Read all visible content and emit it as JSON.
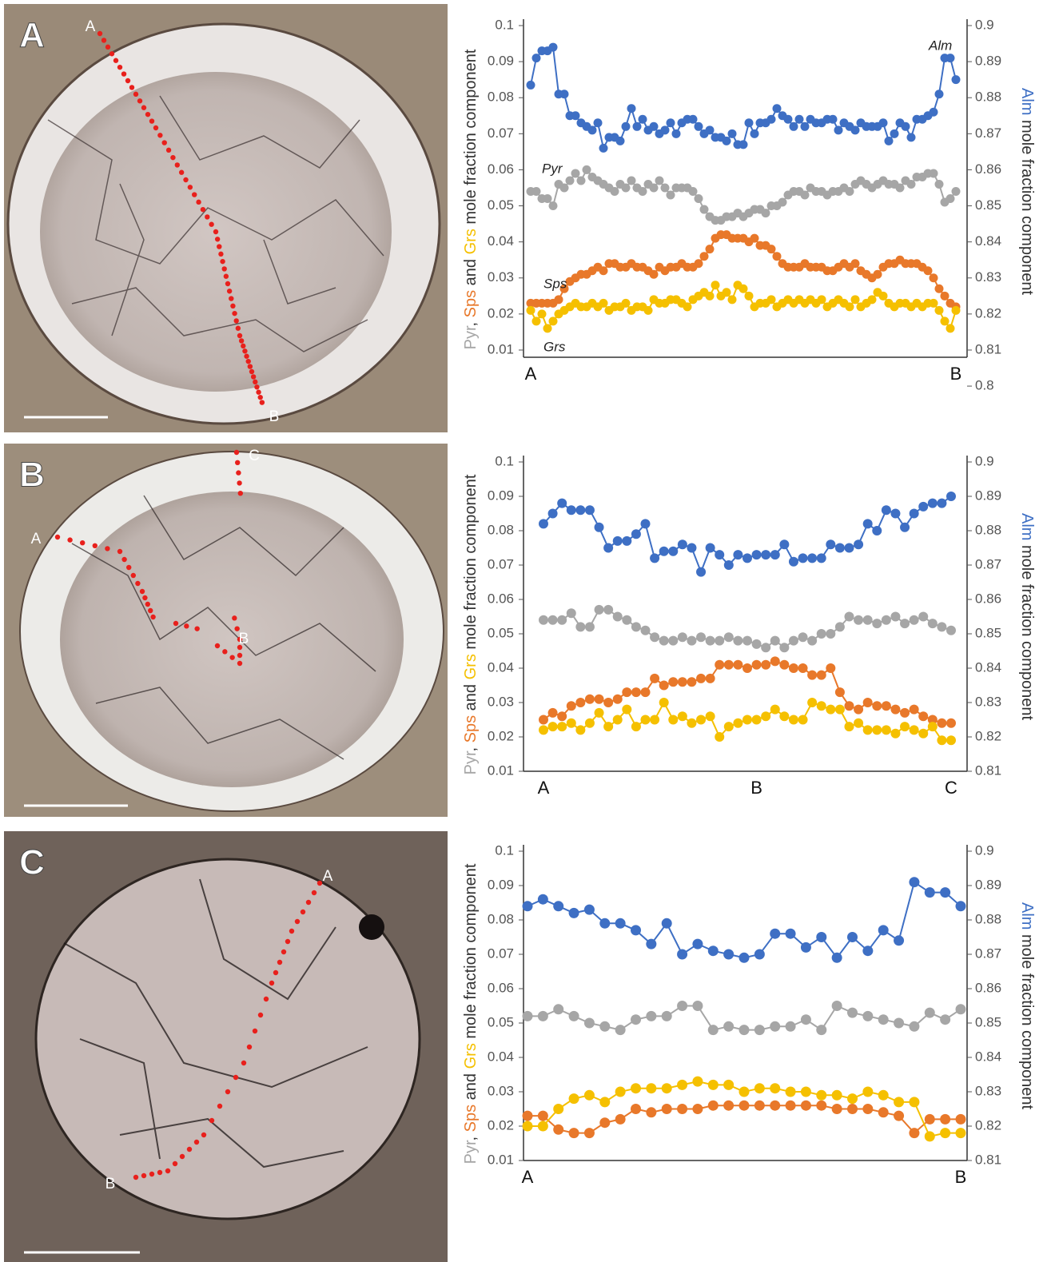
{
  "images": [
    {
      "panel": "A",
      "points": [
        "A",
        "B"
      ]
    },
    {
      "panel": "B",
      "points": [
        "A",
        "B",
        "C"
      ]
    },
    {
      "panel": "C",
      "points": [
        "A",
        "B"
      ]
    }
  ],
  "chart_data": [
    {
      "type": "line",
      "categories": [
        "A",
        null,
        null,
        null,
        null,
        null,
        null,
        null,
        null,
        null,
        null,
        null,
        null,
        null,
        null,
        null,
        null,
        null,
        null,
        null,
        null,
        null,
        null,
        null,
        null,
        null,
        null,
        null,
        null,
        null,
        null,
        null,
        null,
        null,
        null,
        null,
        null,
        null,
        null,
        null,
        null,
        null,
        null,
        null,
        null,
        null,
        null,
        null,
        null,
        null,
        null,
        null,
        null,
        null,
        null,
        null,
        null,
        null,
        null,
        null,
        null,
        null,
        null,
        null,
        null,
        null,
        null,
        null,
        null,
        null,
        null,
        null,
        null,
        null,
        null,
        null,
        "B"
      ],
      "ylim": [
        0.008,
        0.1
      ],
      "yticks": [
        0.01,
        0.02,
        0.03,
        0.04,
        0.05,
        0.06,
        0.07,
        0.08,
        0.09,
        0.1
      ],
      "y2lim": [
        0.808,
        0.9
      ],
      "y2ticks": [
        0.8,
        0.81,
        0.82,
        0.83,
        0.84,
        0.85,
        0.86,
        0.87,
        0.88,
        0.89,
        0.9
      ],
      "ylabel": [
        {
          "text": "Pyr",
          "color": "#a6a6a6"
        },
        {
          "text": ", "
        },
        {
          "text": "Sps",
          "color": "#e8782a"
        },
        {
          "text": " and "
        },
        {
          "text": "Grs",
          "color": "#f5c000"
        },
        {
          "text": " mole fraction component"
        }
      ],
      "y2label": [
        {
          "text": "Alm",
          "color": "#3e6fc4"
        },
        {
          "text": " mole fraction component"
        }
      ],
      "series": [
        {
          "name": "Alm",
          "color": "#3e6fc4",
          "axis": "y2",
          "values": [
            0.8835,
            0.891,
            0.893,
            0.893,
            0.894,
            0.881,
            0.881,
            0.875,
            0.875,
            0.873,
            0.872,
            0.871,
            0.873,
            0.866,
            0.869,
            0.869,
            0.868,
            0.872,
            0.877,
            0.872,
            0.874,
            0.871,
            0.872,
            0.87,
            0.871,
            0.873,
            0.87,
            0.873,
            0.874,
            0.874,
            0.872,
            0.87,
            0.871,
            0.869,
            0.869,
            0.868,
            0.87,
            0.867,
            0.867,
            0.873,
            0.87,
            0.873,
            0.873,
            0.874,
            0.877,
            0.875,
            0.874,
            0.872,
            0.874,
            0.872,
            0.874,
            0.873,
            0.873,
            0.874,
            0.874,
            0.871,
            0.873,
            0.872,
            0.871,
            0.873,
            0.872,
            0.872,
            0.872,
            0.873,
            0.868,
            0.87,
            0.873,
            0.872,
            0.869,
            0.874,
            0.874,
            0.875,
            0.876,
            0.881,
            0.891,
            0.891,
            0.885
          ]
        },
        {
          "name": "Pyr",
          "color": "#a6a6a6",
          "values": [
            0.054,
            0.054,
            0.052,
            0.052,
            0.05,
            0.056,
            0.055,
            0.057,
            0.059,
            0.057,
            0.06,
            0.058,
            0.057,
            0.056,
            0.055,
            0.054,
            0.056,
            0.055,
            0.057,
            0.055,
            0.054,
            0.056,
            0.055,
            0.057,
            0.055,
            0.053,
            0.055,
            0.055,
            0.055,
            0.054,
            0.052,
            0.049,
            0.047,
            0.046,
            0.046,
            0.047,
            0.047,
            0.048,
            0.047,
            0.048,
            0.049,
            0.049,
            0.048,
            0.05,
            0.05,
            0.051,
            0.053,
            0.054,
            0.054,
            0.053,
            0.055,
            0.054,
            0.054,
            0.053,
            0.054,
            0.054,
            0.055,
            0.054,
            0.056,
            0.057,
            0.056,
            0.055,
            0.056,
            0.057,
            0.056,
            0.056,
            0.055,
            0.057,
            0.056,
            0.058,
            0.058,
            0.059,
            0.059,
            0.056,
            0.051,
            0.052,
            0.054
          ]
        },
        {
          "name": "Sps",
          "color": "#e8782a",
          "values": [
            0.023,
            0.023,
            0.023,
            0.023,
            0.023,
            0.024,
            0.027,
            0.029,
            0.03,
            0.031,
            0.031,
            0.032,
            0.033,
            0.032,
            0.034,
            0.034,
            0.033,
            0.033,
            0.034,
            0.033,
            0.033,
            0.032,
            0.031,
            0.033,
            0.032,
            0.033,
            0.033,
            0.034,
            0.033,
            0.033,
            0.034,
            0.036,
            0.038,
            0.041,
            0.042,
            0.042,
            0.041,
            0.041,
            0.041,
            0.04,
            0.041,
            0.039,
            0.039,
            0.038,
            0.036,
            0.034,
            0.033,
            0.033,
            0.033,
            0.034,
            0.033,
            0.033,
            0.033,
            0.032,
            0.032,
            0.033,
            0.034,
            0.033,
            0.034,
            0.032,
            0.031,
            0.03,
            0.031,
            0.033,
            0.034,
            0.034,
            0.035,
            0.034,
            0.034,
            0.034,
            0.033,
            0.032,
            0.03,
            0.027,
            0.025,
            0.023,
            0.022
          ]
        },
        {
          "name": "Grs",
          "color": "#f5c000",
          "values": [
            0.021,
            0.018,
            0.02,
            0.016,
            0.018,
            0.02,
            0.021,
            0.022,
            0.023,
            0.022,
            0.022,
            0.023,
            0.022,
            0.023,
            0.021,
            0.022,
            0.022,
            0.023,
            0.021,
            0.022,
            0.022,
            0.021,
            0.024,
            0.023,
            0.023,
            0.024,
            0.024,
            0.023,
            0.022,
            0.024,
            0.025,
            0.026,
            0.025,
            0.028,
            0.025,
            0.026,
            0.024,
            0.028,
            0.027,
            0.025,
            0.022,
            0.023,
            0.023,
            0.024,
            0.022,
            0.023,
            0.024,
            0.023,
            0.024,
            0.023,
            0.024,
            0.023,
            0.024,
            0.022,
            0.023,
            0.024,
            0.023,
            0.022,
            0.024,
            0.022,
            0.023,
            0.024,
            0.026,
            0.025,
            0.023,
            0.022,
            0.023,
            0.023,
            0.022,
            0.023,
            0.022,
            0.023,
            0.023,
            0.021,
            0.018,
            0.016,
            0.021
          ]
        }
      ]
    },
    {
      "type": "line",
      "categories": [
        "A",
        null,
        null,
        null,
        null,
        null,
        null,
        null,
        null,
        null,
        null,
        null,
        null,
        null,
        null,
        null,
        null,
        null,
        null,
        null,
        null,
        null,
        null,
        "B",
        null,
        null,
        null,
        null,
        null,
        null,
        null,
        null,
        null,
        null,
        null,
        null,
        null,
        null,
        null,
        null,
        null,
        null,
        null,
        null,
        "C"
      ],
      "ylim": [
        0.01,
        0.1
      ],
      "yticks": [
        0.01,
        0.02,
        0.03,
        0.04,
        0.05,
        0.06,
        0.07,
        0.08,
        0.09,
        0.1
      ],
      "y2lim": [
        0.81,
        0.9
      ],
      "y2ticks": [
        0.81,
        0.82,
        0.83,
        0.84,
        0.85,
        0.86,
        0.87,
        0.88,
        0.89,
        0.9
      ],
      "ylabel": [
        {
          "text": "Pyr",
          "color": "#a6a6a6"
        },
        {
          "text": ", "
        },
        {
          "text": "Sps",
          "color": "#e8782a"
        },
        {
          "text": " and "
        },
        {
          "text": "Grs",
          "color": "#f5c000"
        },
        {
          "text": " mole fraction component"
        }
      ],
      "y2label": [
        {
          "text": "Alm",
          "color": "#3e6fc4"
        },
        {
          "text": " mole fraction component"
        }
      ],
      "series": [
        {
          "color": "#3e6fc4",
          "axis": "y2",
          "values": [
            0.882,
            0.885,
            0.888,
            0.886,
            0.886,
            0.886,
            0.881,
            0.875,
            0.877,
            0.877,
            0.879,
            0.882,
            0.872,
            0.874,
            0.874,
            0.876,
            0.875,
            0.868,
            0.875,
            0.873,
            0.87,
            0.873,
            0.872,
            0.873,
            0.873,
            0.873,
            0.876,
            0.871,
            0.872,
            0.872,
            0.872,
            0.876,
            0.875,
            0.875,
            0.876,
            0.882,
            0.88,
            0.886,
            0.885,
            0.881,
            0.885,
            0.887,
            0.888,
            0.888,
            0.89
          ]
        },
        {
          "color": "#a6a6a6",
          "values": [
            0.054,
            0.054,
            0.054,
            0.056,
            0.052,
            0.052,
            0.057,
            0.057,
            0.055,
            0.054,
            0.052,
            0.051,
            0.049,
            0.048,
            0.048,
            0.049,
            0.048,
            0.049,
            0.048,
            0.048,
            0.049,
            0.048,
            0.048,
            0.047,
            0.046,
            0.048,
            0.046,
            0.048,
            0.049,
            0.048,
            0.05,
            0.05,
            0.052,
            0.055,
            0.054,
            0.054,
            0.053,
            0.054,
            0.055,
            0.053,
            0.054,
            0.055,
            0.053,
            0.052,
            0.051
          ]
        },
        {
          "color": "#e8782a",
          "values": [
            0.025,
            0.027,
            0.026,
            0.029,
            0.03,
            0.031,
            0.031,
            0.03,
            0.031,
            0.033,
            0.033,
            0.033,
            0.037,
            0.035,
            0.036,
            0.036,
            0.036,
            0.037,
            0.037,
            0.041,
            0.041,
            0.041,
            0.04,
            0.041,
            0.041,
            0.042,
            0.041,
            0.04,
            0.04,
            0.038,
            0.038,
            0.04,
            0.033,
            0.029,
            0.028,
            0.03,
            0.029,
            0.029,
            0.028,
            0.027,
            0.028,
            0.026,
            0.025,
            0.024,
            0.024
          ]
        },
        {
          "color": "#f5c000",
          "values": [
            0.022,
            0.023,
            0.023,
            0.024,
            0.022,
            0.024,
            0.027,
            0.023,
            0.025,
            0.028,
            0.023,
            0.025,
            0.025,
            0.03,
            0.025,
            0.026,
            0.024,
            0.025,
            0.026,
            0.02,
            0.023,
            0.024,
            0.025,
            0.025,
            0.026,
            0.028,
            0.026,
            0.025,
            0.025,
            0.03,
            0.029,
            0.028,
            0.028,
            0.023,
            0.024,
            0.022,
            0.022,
            0.022,
            0.021,
            0.023,
            0.022,
            0.021,
            0.023,
            0.019,
            0.019
          ]
        }
      ]
    },
    {
      "type": "line",
      "categories": [
        "A",
        null,
        null,
        null,
        null,
        null,
        null,
        null,
        null,
        null,
        null,
        null,
        null,
        null,
        null,
        null,
        null,
        null,
        null,
        null,
        null,
        null,
        null,
        null,
        null,
        null,
        null,
        null,
        "B"
      ],
      "ylim": [
        0.01,
        0.1
      ],
      "yticks": [
        0.01,
        0.02,
        0.03,
        0.04,
        0.05,
        0.06,
        0.07,
        0.08,
        0.09,
        0.1
      ],
      "y2lim": [
        0.81,
        0.9
      ],
      "y2ticks": [
        0.81,
        0.82,
        0.83,
        0.84,
        0.85,
        0.86,
        0.87,
        0.88,
        0.89,
        0.9
      ],
      "ylabel": [
        {
          "text": "Pyr",
          "color": "#a6a6a6"
        },
        {
          "text": ", "
        },
        {
          "text": "Sps",
          "color": "#e8782a"
        },
        {
          "text": " and "
        },
        {
          "text": "Grs",
          "color": "#f5c000"
        },
        {
          "text": " mole fraction component"
        }
      ],
      "y2label": [
        {
          "text": "Alm",
          "color": "#3e6fc4"
        },
        {
          "text": " mole fraction component"
        }
      ],
      "series": [
        {
          "color": "#3e6fc4",
          "axis": "y2",
          "values": [
            0.884,
            0.886,
            0.884,
            0.882,
            0.883,
            0.879,
            0.879,
            0.877,
            0.873,
            0.879,
            0.87,
            0.873,
            0.871,
            0.87,
            0.869,
            0.87,
            0.876,
            0.876,
            0.872,
            0.875,
            0.869,
            0.875,
            0.871,
            0.877,
            0.874,
            0.891,
            0.888,
            0.888,
            0.884
          ]
        },
        {
          "color": "#a6a6a6",
          "values": [
            0.052,
            0.052,
            0.054,
            0.052,
            0.05,
            0.049,
            0.048,
            0.051,
            0.052,
            0.052,
            0.055,
            0.055,
            0.048,
            0.049,
            0.048,
            0.048,
            0.049,
            0.049,
            0.051,
            0.048,
            0.055,
            0.053,
            0.052,
            0.051,
            0.05,
            0.049,
            0.053,
            0.051,
            0.054
          ]
        },
        {
          "color": "#e8782a",
          "values": [
            0.023,
            0.023,
            0.019,
            0.018,
            0.018,
            0.021,
            0.022,
            0.025,
            0.024,
            0.025,
            0.025,
            0.025,
            0.026,
            0.026,
            0.026,
            0.026,
            0.026,
            0.026,
            0.026,
            0.026,
            0.025,
            0.025,
            0.025,
            0.024,
            0.023,
            0.018,
            0.022,
            0.022,
            0.022
          ]
        },
        {
          "color": "#f5c000",
          "values": [
            0.02,
            0.02,
            0.025,
            0.028,
            0.029,
            0.027,
            0.03,
            0.031,
            0.031,
            0.031,
            0.032,
            0.033,
            0.032,
            0.032,
            0.03,
            0.031,
            0.031,
            0.03,
            0.03,
            0.029,
            0.029,
            0.028,
            0.03,
            0.029,
            0.027,
            0.027,
            0.017,
            0.018,
            0.018
          ]
        }
      ]
    }
  ]
}
